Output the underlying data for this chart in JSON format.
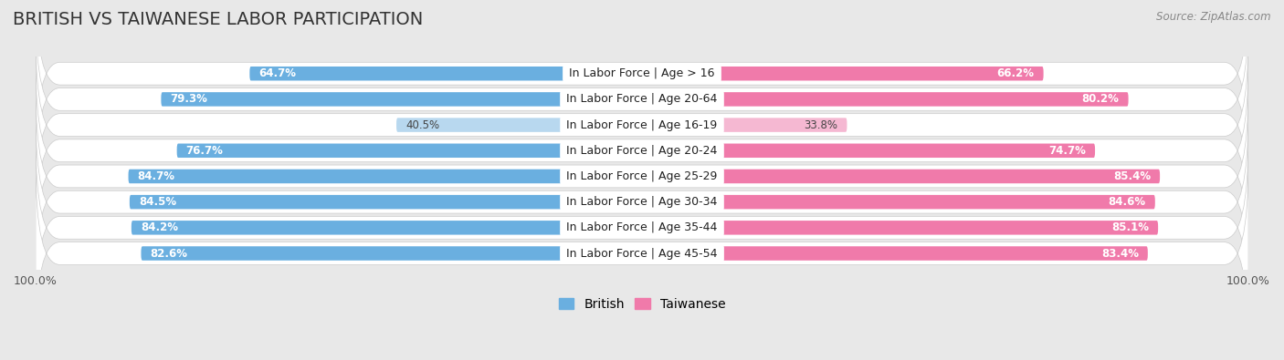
{
  "title": "BRITISH VS TAIWANESE LABOR PARTICIPATION",
  "source": "Source: ZipAtlas.com",
  "categories": [
    "In Labor Force | Age > 16",
    "In Labor Force | Age 20-64",
    "In Labor Force | Age 16-19",
    "In Labor Force | Age 20-24",
    "In Labor Force | Age 25-29",
    "In Labor Force | Age 30-34",
    "In Labor Force | Age 35-44",
    "In Labor Force | Age 45-54"
  ],
  "british_values": [
    64.7,
    79.3,
    40.5,
    76.7,
    84.7,
    84.5,
    84.2,
    82.6
  ],
  "taiwanese_values": [
    66.2,
    80.2,
    33.8,
    74.7,
    85.4,
    84.6,
    85.1,
    83.4
  ],
  "british_color": "#6aafe0",
  "british_color_light": "#b8d8ef",
  "taiwanese_color": "#f07aaa",
  "taiwanese_color_light": "#f5b8d2",
  "bg_color": "#e8e8e8",
  "row_bg": "#ffffff",
  "max_val": 100.0,
  "title_fontsize": 14,
  "label_fontsize": 9,
  "value_fontsize": 8.5,
  "legend_fontsize": 10
}
